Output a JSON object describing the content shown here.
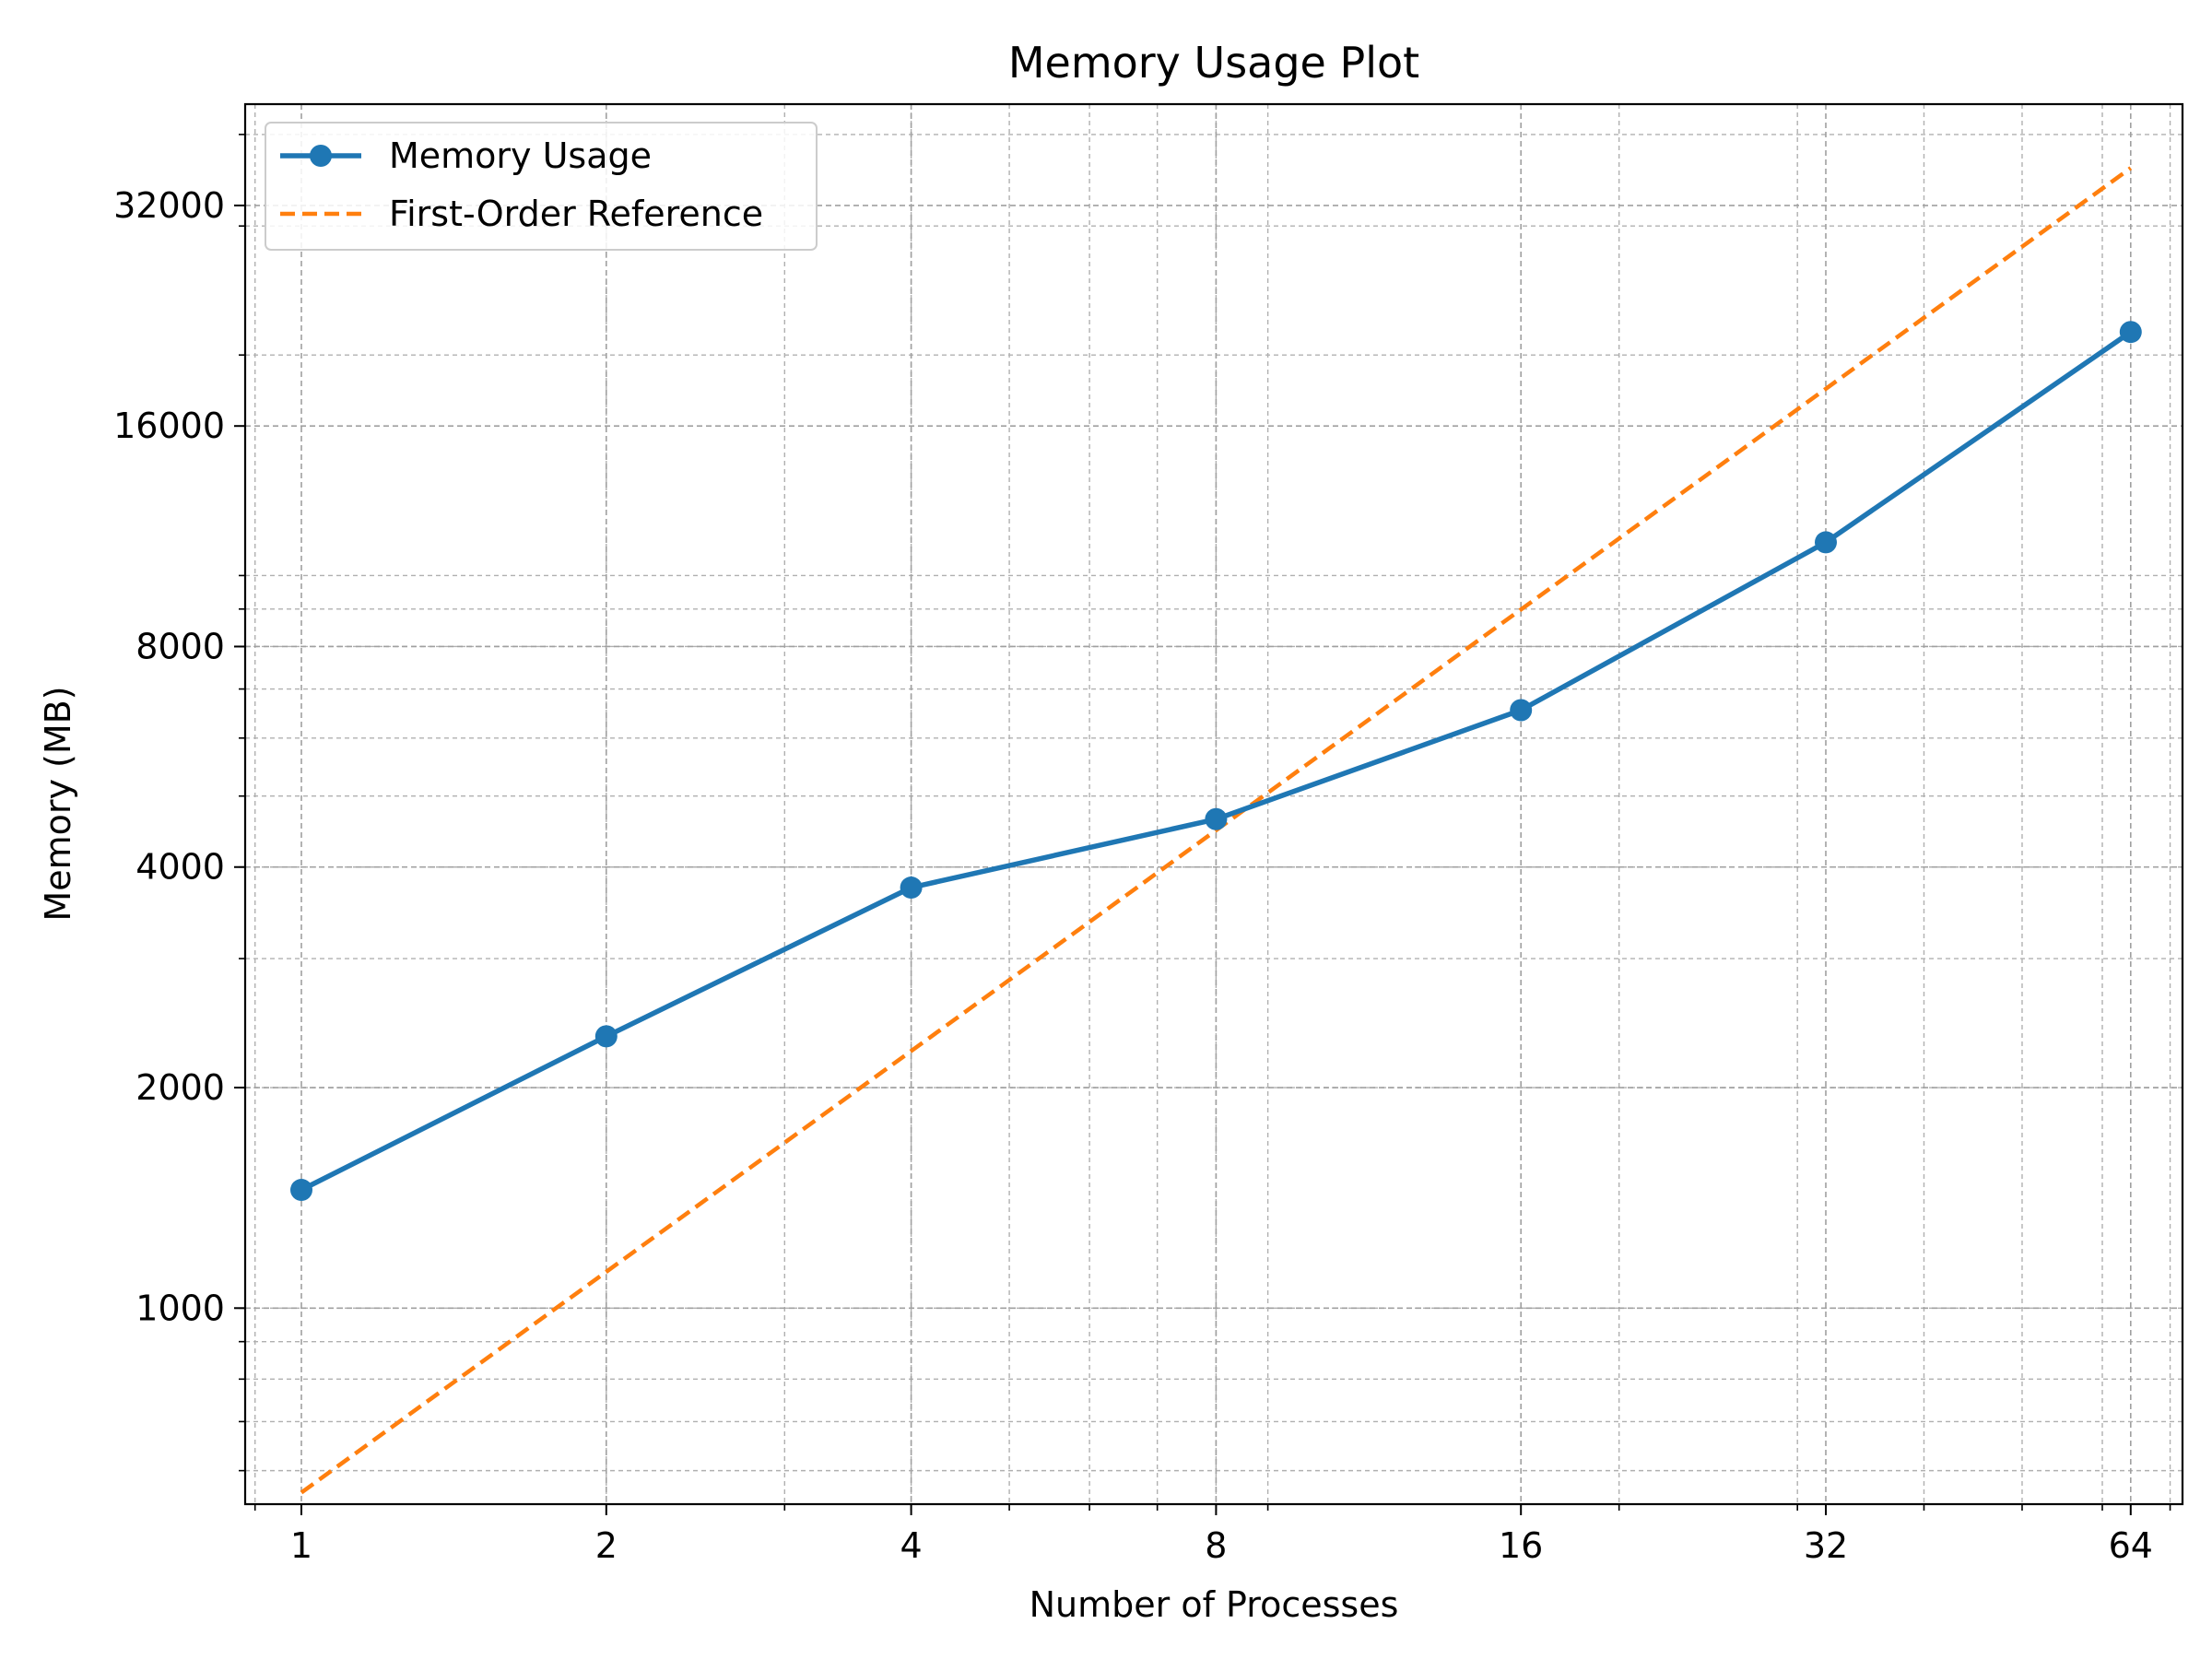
{
  "chart_data": {
    "type": "line",
    "title": "Memory Usage Plot",
    "xlabel": "Number of Processes",
    "ylabel": "Memory (MB)",
    "x_scale": "log2",
    "y_scale": "log2",
    "xlim": [
      0.88,
      72
    ],
    "ylim": [
      540,
      44000
    ],
    "x_ticks": [
      1,
      2,
      4,
      8,
      16,
      32,
      64
    ],
    "x_tick_labels": [
      "1",
      "2",
      "4",
      "8",
      "16",
      "32",
      "64"
    ],
    "y_ticks": [
      1000,
      2000,
      4000,
      8000,
      16000,
      32000
    ],
    "y_tick_labels": [
      "1000",
      "2000",
      "4000",
      "8000",
      "16000",
      "32000"
    ],
    "grid": true,
    "legend_position": "top-left",
    "series": [
      {
        "name": "Memory Usage",
        "style": "solid-line-with-markers",
        "color": "#1f77b4",
        "x": [
          1,
          2,
          4,
          8,
          16,
          32,
          64
        ],
        "y": [
          1450,
          2350,
          3750,
          4650,
          6550,
          11100,
          21500
        ]
      },
      {
        "name": "First-Order Reference",
        "style": "dashed",
        "color": "#ff7f0e",
        "x": [
          1,
          64
        ],
        "y": [
          560,
          36000
        ]
      }
    ]
  }
}
